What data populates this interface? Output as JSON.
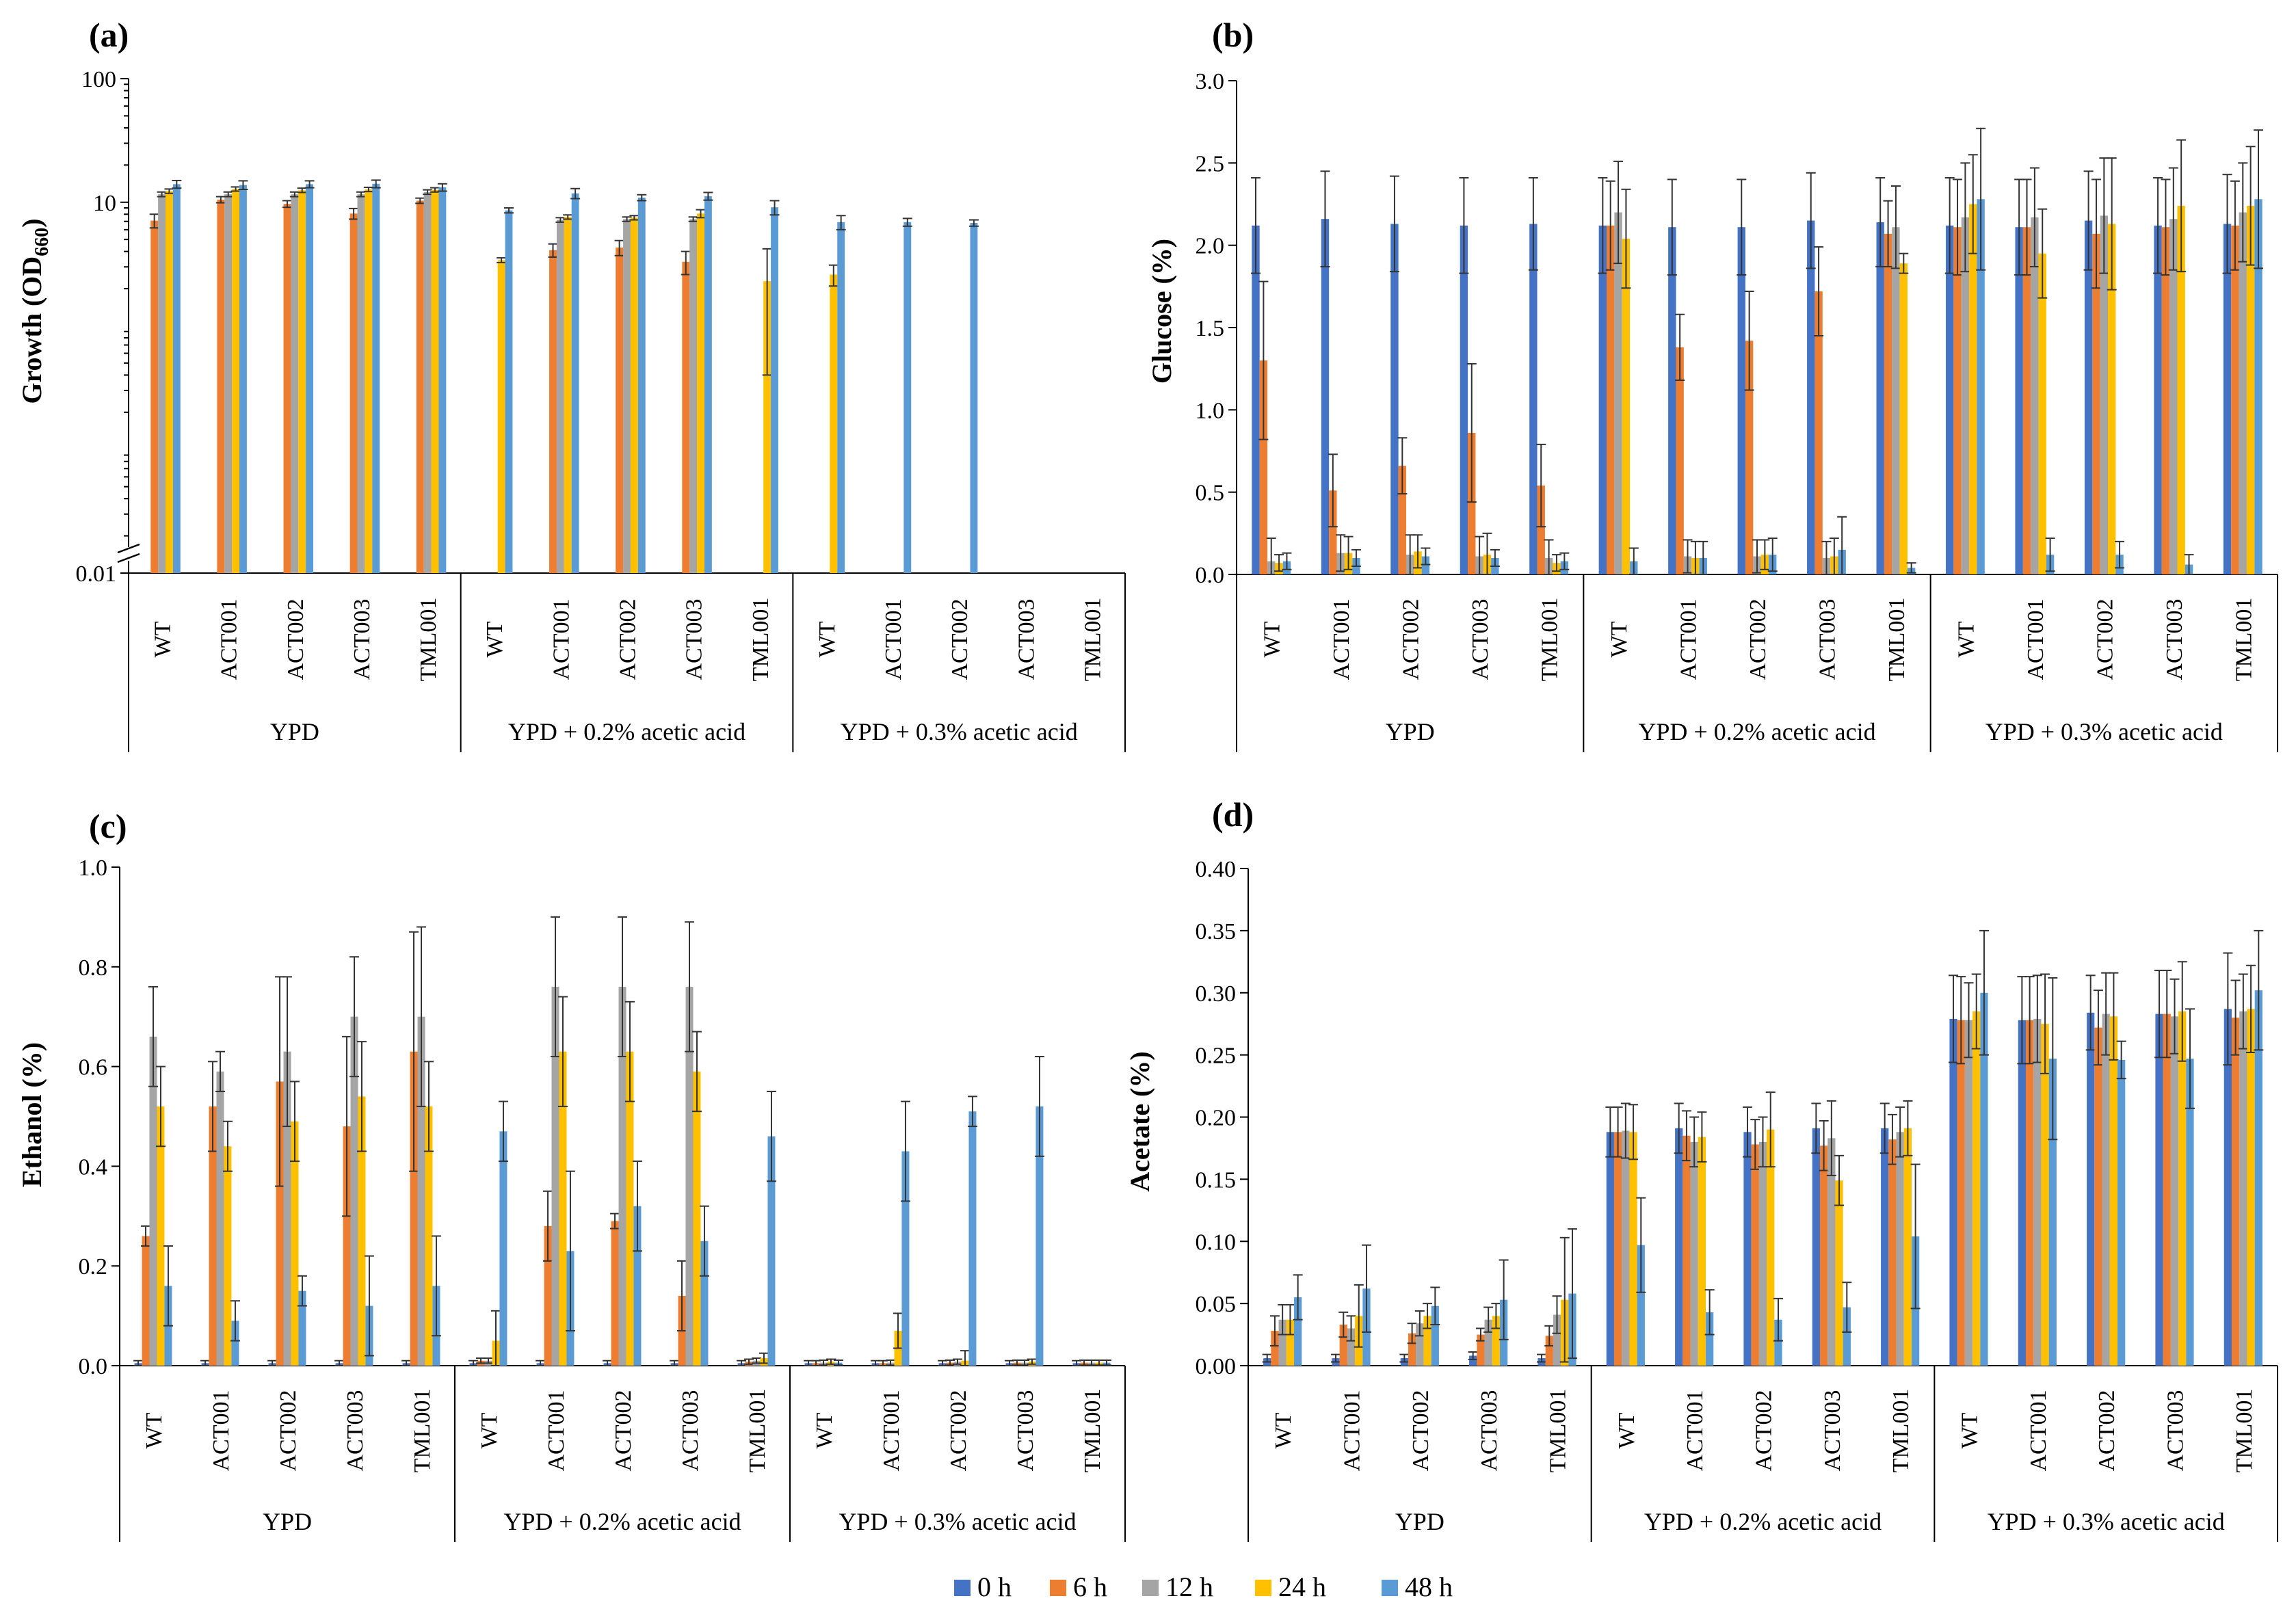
{
  "groups": [
    "YPD",
    "YPD + 0.2% acetic acid",
    "YPD + 0.3% acetic acid"
  ],
  "strains": [
    "WT",
    "ACT001",
    "ACT002",
    "ACT003",
    "TML001"
  ],
  "legend": {
    "items": [
      {
        "label": "0 h",
        "color": "#4472C4"
      },
      {
        "label": "6 h",
        "color": "#ED7D31"
      },
      {
        "label": "12 h",
        "color": "#A5A5A5"
      },
      {
        "label": "24 h",
        "color": "#FFC000"
      },
      {
        "label": "48 h",
        "color": "#5B9BD5"
      }
    ]
  },
  "chart_data": [
    {
      "panel": "(a)",
      "type": "bar",
      "yscale": "log",
      "ylabel": "Growth (OD660)",
      "ylabel_main": "Growth (OD",
      "ylabel_sub": "660",
      "ylabel_end": ")",
      "ylim": [
        0.01,
        100
      ],
      "yticks": [
        0.01,
        10,
        100
      ],
      "ytick_labels": [
        "0.01",
        "10",
        "100"
      ],
      "axis_break": true,
      "series": [
        {
          "name": "0 h",
          "values": [
            null,
            null,
            null,
            null,
            null,
            null,
            null,
            null,
            null,
            null,
            null,
            null,
            null,
            null,
            null
          ]
        },
        {
          "name": "6 h",
          "values": [
            7.1,
            10.5,
            9.7,
            8.1,
            10.3,
            null,
            4.1,
            4.3,
            3.3,
            null,
            null,
            null,
            null,
            null,
            null
          ]
        },
        {
          "name": "12 h",
          "values": [
            11.6,
            11.6,
            11.6,
            11.6,
            12.1,
            null,
            7.2,
            7.3,
            7.3,
            null,
            null,
            null,
            null,
            null,
            null
          ]
        },
        {
          "name": "24 h",
          "values": [
            12.3,
            12.8,
            12.5,
            12.7,
            12.6,
            3.4,
            7.6,
            7.5,
            8.1,
            2.3,
            2.6,
            null,
            null,
            null,
            null
          ]
        },
        {
          "name": "48 h",
          "values": [
            14.0,
            13.8,
            14.0,
            14.1,
            13.2,
            8.6,
            11.8,
            10.9,
            11.2,
            9.1,
            6.9,
            6.9,
            6.8,
            null,
            null
          ]
        }
      ],
      "errors": [
        [
          0,
          0,
          0,
          0,
          0,
          0,
          0,
          0,
          0,
          0,
          0,
          0,
          0,
          0,
          0
        ],
        [
          0.9,
          0.6,
          0.6,
          0.8,
          0.5,
          0,
          0.5,
          0.6,
          0.7,
          0,
          0,
          0,
          0,
          0,
          0
        ],
        [
          0.5,
          0.5,
          0.5,
          0.5,
          0.5,
          0,
          0.3,
          0.3,
          0.3,
          0,
          0,
          0,
          0,
          0,
          0
        ],
        [
          0.5,
          0.5,
          0.5,
          0.5,
          0.5,
          0.15,
          0.3,
          0.3,
          0.6,
          1.9,
          0.5,
          0,
          0,
          0,
          0
        ],
        [
          1.0,
          1.1,
          0.9,
          1.0,
          0.9,
          0.4,
          1.1,
          0.6,
          0.8,
          1.2,
          0.9,
          0.5,
          0.4,
          0,
          0
        ]
      ]
    },
    {
      "panel": "(b)",
      "type": "bar",
      "ylabel": "Glucose (%)",
      "ylim": [
        0,
        3.0
      ],
      "yticks": [
        0,
        0.5,
        1.0,
        1.5,
        2.0,
        2.5,
        3.0
      ],
      "ytick_labels": [
        "0.0",
        "0.5",
        "1.0",
        "1.5",
        "2.0",
        "2.5",
        "3.0"
      ],
      "series": [
        {
          "name": "0 h",
          "values": [
            2.12,
            2.16,
            2.13,
            2.12,
            2.13,
            2.12,
            2.11,
            2.11,
            2.15,
            2.14,
            2.12,
            2.11,
            2.15,
            2.12,
            2.13
          ]
        },
        {
          "name": "6 h",
          "values": [
            1.3,
            0.51,
            0.66,
            0.86,
            0.54,
            2.12,
            1.38,
            1.42,
            1.72,
            2.07,
            2.11,
            2.11,
            2.07,
            2.11,
            2.12
          ]
        },
        {
          "name": "12 h",
          "values": [
            0.08,
            0.13,
            0.12,
            0.11,
            0.1,
            2.2,
            0.11,
            0.11,
            0.1,
            2.11,
            2.17,
            2.17,
            2.18,
            2.16,
            2.2
          ]
        },
        {
          "name": "24 h",
          "values": [
            0.07,
            0.13,
            0.14,
            0.12,
            0.07,
            2.04,
            0.1,
            0.12,
            0.11,
            1.89,
            2.25,
            1.95,
            2.13,
            2.24,
            2.24
          ]
        },
        {
          "name": "48 h",
          "values": [
            0.08,
            0.1,
            0.11,
            0.1,
            0.08,
            0.08,
            0.1,
            0.12,
            0.15,
            0.04,
            2.28,
            0.12,
            0.12,
            0.06,
            2.28
          ]
        }
      ],
      "errors": [
        [
          0.29,
          0.29,
          0.29,
          0.29,
          0.28,
          0.29,
          0.29,
          0.29,
          0.29,
          0.27,
          0.29,
          0.29,
          0.3,
          0.29,
          0.3
        ],
        [
          0.48,
          0.22,
          0.17,
          0.42,
          0.25,
          0.27,
          0.2,
          0.3,
          0.27,
          0.2,
          0.29,
          0.29,
          0.33,
          0.29,
          0.27
        ],
        [
          0.14,
          0.11,
          0.12,
          0.12,
          0.11,
          0.31,
          0.1,
          0.1,
          0.1,
          0.25,
          0.33,
          0.3,
          0.35,
          0.31,
          0.3
        ],
        [
          0.05,
          0.1,
          0.1,
          0.13,
          0.05,
          0.3,
          0.1,
          0.09,
          0.11,
          0.06,
          0.3,
          0.27,
          0.4,
          0.4,
          0.36
        ],
        [
          0.05,
          0.05,
          0.05,
          0.05,
          0.05,
          0.08,
          0.1,
          0.1,
          0.2,
          0.03,
          0.43,
          0.1,
          0.08,
          0.06,
          0.42
        ]
      ]
    },
    {
      "panel": "(c)",
      "type": "bar",
      "ylabel": "Ethanol (%)",
      "ylim": [
        0,
        1.0
      ],
      "yticks": [
        0,
        0.2,
        0.4,
        0.6,
        0.8,
        1.0
      ],
      "ytick_labels": [
        "0.0",
        "0.2",
        "0.4",
        "0.6",
        "0.8",
        "1.0"
      ],
      "series": [
        {
          "name": "0 h",
          "values": [
            0.005,
            0.005,
            0.005,
            0.005,
            0.005,
            0.005,
            0.005,
            0.005,
            0.005,
            0.005,
            0.005,
            0.005,
            0.005,
            0.005,
            0.005
          ]
        },
        {
          "name": "6 h",
          "values": [
            0.26,
            0.52,
            0.57,
            0.48,
            0.63,
            0.01,
            0.28,
            0.29,
            0.14,
            0.008,
            0.005,
            0.005,
            0.006,
            0.006,
            0.006
          ]
        },
        {
          "name": "12 h",
          "values": [
            0.66,
            0.59,
            0.63,
            0.7,
            0.7,
            0.01,
            0.76,
            0.76,
            0.76,
            0.01,
            0.006,
            0.006,
            0.008,
            0.006,
            0.006
          ]
        },
        {
          "name": "24 h",
          "values": [
            0.52,
            0.44,
            0.49,
            0.54,
            0.52,
            0.05,
            0.63,
            0.63,
            0.59,
            0.015,
            0.008,
            0.07,
            0.01,
            0.008,
            0.006
          ]
        },
        {
          "name": "48 h",
          "values": [
            0.16,
            0.09,
            0.15,
            0.12,
            0.16,
            0.47,
            0.23,
            0.32,
            0.25,
            0.46,
            0.006,
            0.43,
            0.51,
            0.52,
            0.006
          ]
        }
      ],
      "errors": [
        [
          0.005,
          0.005,
          0.005,
          0.005,
          0.005,
          0.005,
          0.005,
          0.005,
          0.005,
          0.005,
          0.005,
          0.005,
          0.005,
          0.005,
          0.005
        ],
        [
          0.02,
          0.09,
          0.21,
          0.18,
          0.24,
          0.005,
          0.07,
          0.015,
          0.07,
          0.005,
          0.005,
          0.005,
          0.005,
          0.005,
          0.005
        ],
        [
          0.1,
          0.04,
          0.15,
          0.12,
          0.18,
          0.005,
          0.14,
          0.14,
          0.13,
          0.005,
          0.005,
          0.005,
          0.005,
          0.005,
          0.005
        ],
        [
          0.08,
          0.05,
          0.08,
          0.11,
          0.09,
          0.06,
          0.11,
          0.1,
          0.08,
          0.01,
          0.005,
          0.035,
          0.02,
          0.005,
          0.005
        ],
        [
          0.08,
          0.04,
          0.03,
          0.1,
          0.1,
          0.06,
          0.16,
          0.09,
          0.07,
          0.09,
          0.005,
          0.1,
          0.03,
          0.1,
          0.005
        ]
      ]
    },
    {
      "panel": "(d)",
      "type": "bar",
      "ylabel": "Acetate (%)",
      "ylim": [
        0,
        0.4
      ],
      "yticks": [
        0,
        0.05,
        0.1,
        0.15,
        0.2,
        0.25,
        0.3,
        0.35,
        0.4
      ],
      "ytick_labels": [
        "0.00",
        "0.05",
        "0.10",
        "0.15",
        "0.20",
        "0.25",
        "0.30",
        "0.35",
        "0.40"
      ],
      "series": [
        {
          "name": "0 h",
          "values": [
            0.006,
            0.006,
            0.006,
            0.008,
            0.006,
            0.188,
            0.191,
            0.188,
            0.191,
            0.191,
            0.279,
            0.278,
            0.284,
            0.283,
            0.287
          ]
        },
        {
          "name": "6 h",
          "values": [
            0.028,
            0.033,
            0.026,
            0.025,
            0.024,
            0.188,
            0.185,
            0.178,
            0.177,
            0.182,
            0.278,
            0.278,
            0.272,
            0.283,
            0.28
          ]
        },
        {
          "name": "12 h",
          "values": [
            0.037,
            0.03,
            0.034,
            0.037,
            0.041,
            0.189,
            0.18,
            0.18,
            0.183,
            0.188,
            0.278,
            0.279,
            0.283,
            0.281,
            0.285
          ]
        },
        {
          "name": "24 h",
          "values": [
            0.037,
            0.04,
            0.04,
            0.04,
            0.053,
            0.188,
            0.184,
            0.19,
            0.149,
            0.191,
            0.285,
            0.275,
            0.281,
            0.285,
            0.287
          ]
        },
        {
          "name": "48 h",
          "values": [
            0.055,
            0.062,
            0.048,
            0.053,
            0.058,
            0.097,
            0.043,
            0.037,
            0.047,
            0.104,
            0.3,
            0.247,
            0.246,
            0.247,
            0.302
          ]
        }
      ],
      "errors": [
        [
          0.003,
          0.003,
          0.003,
          0.003,
          0.003,
          0.02,
          0.02,
          0.02,
          0.02,
          0.02,
          0.035,
          0.035,
          0.03,
          0.035,
          0.045
        ],
        [
          0.012,
          0.01,
          0.008,
          0.005,
          0.008,
          0.02,
          0.02,
          0.02,
          0.02,
          0.02,
          0.035,
          0.035,
          0.03,
          0.035,
          0.03
        ],
        [
          0.012,
          0.01,
          0.01,
          0.01,
          0.015,
          0.022,
          0.02,
          0.02,
          0.03,
          0.02,
          0.03,
          0.035,
          0.033,
          0.03,
          0.03
        ],
        [
          0.012,
          0.025,
          0.01,
          0.01,
          0.05,
          0.022,
          0.02,
          0.03,
          0.02,
          0.022,
          0.03,
          0.04,
          0.035,
          0.04,
          0.035
        ],
        [
          0.018,
          0.035,
          0.015,
          0.032,
          0.052,
          0.038,
          0.018,
          0.017,
          0.02,
          0.058,
          0.05,
          0.065,
          0.015,
          0.04,
          0.048
        ]
      ]
    }
  ]
}
